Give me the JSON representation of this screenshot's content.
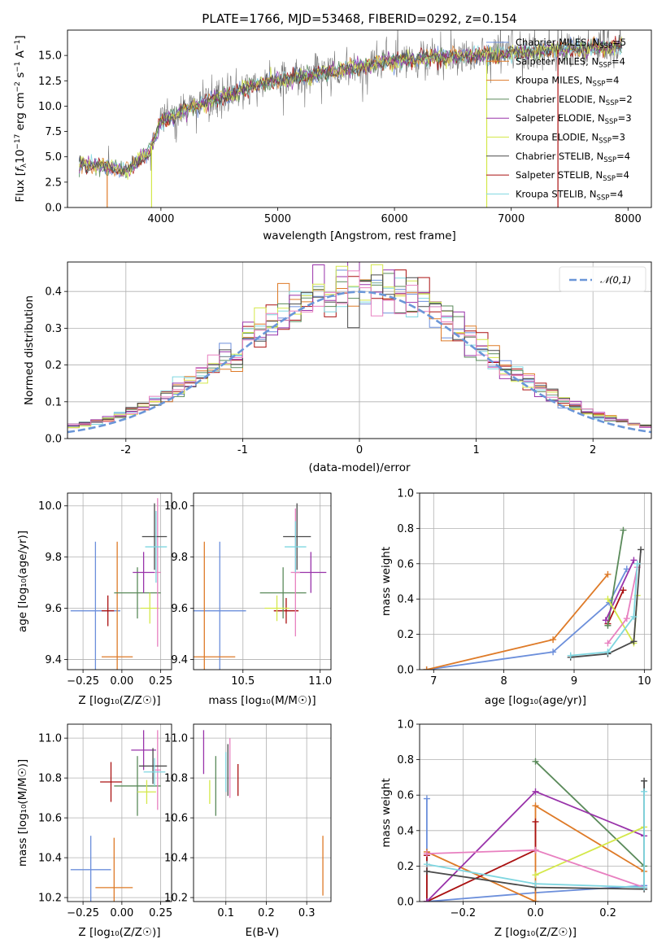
{
  "header": {
    "title": "PLATE=1766, MJD=53468, FIBERID=0292, z=0.154"
  },
  "colors": {
    "Chabrier MILES": "#6c8fdb",
    "Salpeter MILES": "#de7a27",
    "Kroupa MILES": "#de7a27",
    "Chabrier ELODIE": "#5a8a5a",
    "Salpeter ELODIE": "#9933aa",
    "Kroupa ELODIE": "#d4e84a",
    "Chabrier STELIB": "#4a4a4a",
    "Salpeter STELIB": "#aa1111",
    "Kroupa STELIB": "#7fd6e0",
    "pink": "#e880c0",
    "normal": "#6a96d8",
    "data": "#777777"
  },
  "chart_data": [
    {
      "id": "spectrum",
      "type": "line",
      "title": "PLATE=1766, MJD=53468, FIBERID=0292, z=0.154",
      "xlabel": "wavelength [Angstrom, rest frame]",
      "ylabel_parts": [
        "Flux [",
        "f",
        "λ",
        "10",
        "−17",
        " erg cm",
        "−2",
        " s",
        "−1",
        " A",
        "−1",
        "]"
      ],
      "xlim": [
        3200,
        8200
      ],
      "ylim": [
        0,
        17.5
      ],
      "xticks": [
        4000,
        5000,
        6000,
        7000,
        8000
      ],
      "yticks": [
        0.0,
        2.5,
        5.0,
        7.5,
        10.0,
        12.5,
        15.0
      ],
      "ytick_labels": [
        "0.0",
        "2.5",
        "5.0",
        "7.5",
        "10.0",
        "12.5",
        "15.0"
      ],
      "grid": false,
      "legend_position": "right",
      "legend": [
        {
          "label": "Chabrier MILES, N",
          "sub": "SSP",
          "tail": "=5",
          "color_key": "Chabrier MILES"
        },
        {
          "label": "Salpeter MILES, N",
          "sub": "SSP",
          "tail": "=4",
          "color_key": "Salpeter MILES"
        },
        {
          "label": "Kroupa MILES, N",
          "sub": "SSP",
          "tail": "=4",
          "color_key": "Kroupa MILES"
        },
        {
          "label": "Chabrier ELODIE, N",
          "sub": "SSP",
          "tail": "=2",
          "color_key": "Chabrier ELODIE"
        },
        {
          "label": "Salpeter ELODIE, N",
          "sub": "SSP",
          "tail": "=3",
          "color_key": "Salpeter ELODIE"
        },
        {
          "label": "Kroupa ELODIE, N",
          "sub": "SSP",
          "tail": "=3",
          "color_key": "Kroupa ELODIE"
        },
        {
          "label": "Chabrier STELIB, N",
          "sub": "SSP",
          "tail": "=4",
          "color_key": "Chabrier STELIB"
        },
        {
          "label": "Salpeter STELIB, N",
          "sub": "SSP",
          "tail": "=4",
          "color_key": "Salpeter STELIB"
        },
        {
          "label": "Kroupa STELIB, N",
          "sub": "SSP",
          "tail": "=4",
          "color_key": "Kroupa STELIB"
        }
      ],
      "continuum": [
        [
          3300,
          4.3
        ],
        [
          3500,
          4.1
        ],
        [
          3700,
          3.6
        ],
        [
          3900,
          5.5
        ],
        [
          4000,
          8.5
        ],
        [
          4200,
          9.6
        ],
        [
          4400,
          10.5
        ],
        [
          4600,
          11.2
        ],
        [
          4800,
          12.0
        ],
        [
          5000,
          12.6
        ],
        [
          5200,
          12.9
        ],
        [
          5500,
          13.5
        ],
        [
          5800,
          14.1
        ],
        [
          6000,
          14.5
        ],
        [
          6300,
          14.8
        ],
        [
          6600,
          15.0
        ],
        [
          7000,
          15.2
        ],
        [
          7300,
          15.5
        ],
        [
          7600,
          15.7
        ],
        [
          8000,
          15.9
        ]
      ]
    },
    {
      "id": "residuals",
      "type": "histogram",
      "xlabel": "(data-model)/error",
      "ylabel": "Normed distribution",
      "xlim": [
        -2.5,
        2.5
      ],
      "ylim": [
        0,
        0.48
      ],
      "xticks": [
        -2,
        -1,
        0,
        1,
        2
      ],
      "yticks": [
        0.0,
        0.1,
        0.2,
        0.3,
        0.4
      ],
      "ytick_labels": [
        "0.0",
        "0.1",
        "0.2",
        "0.3",
        "0.4"
      ],
      "grid": true,
      "legend_position": "upper right",
      "legend": [
        {
          "label": "𝒩(0,1)",
          "color_key": "normal",
          "style": "dashed"
        }
      ],
      "bins": 50
    },
    {
      "id": "age-vs-Z",
      "type": "scatter",
      "xlabel": "Z [log₁₀(Z/Z☉)]",
      "ylabel": "age  [log₁₀(age/yr)]",
      "xlim": [
        -0.35,
        0.32
      ],
      "ylim": [
        9.36,
        10.05
      ],
      "xticks": [
        -0.25,
        0.0,
        0.25
      ],
      "xtick_labels": [
        "−0.25",
        "0.00",
        "0.25"
      ],
      "yticks": [
        9.4,
        9.6,
        9.8,
        10.0
      ],
      "ytick_labels": [
        "9.4",
        "9.6",
        "9.8",
        "10.0"
      ],
      "grid": true,
      "points": [
        {
          "c": "Chabrier MILES",
          "x": -0.17,
          "xerr": 0.16,
          "y": 9.59,
          "yerr": 0.27
        },
        {
          "c": "Kroupa MILES",
          "x": -0.03,
          "xerr": 0.1,
          "y": 9.41,
          "yerr": 0.45
        },
        {
          "c": "Salpeter STELIB",
          "x": -0.09,
          "xerr": 0.04,
          "y": 9.59,
          "yerr": 0.06
        },
        {
          "c": "Chabrier ELODIE",
          "x": 0.1,
          "xerr": 0.15,
          "y": 9.66,
          "yerr": 0.1
        },
        {
          "c": "Salpeter ELODIE",
          "x": 0.14,
          "xerr": 0.07,
          "y": 9.74,
          "yerr": 0.08
        },
        {
          "c": "Kroupa ELODIE",
          "x": 0.18,
          "xerr": 0.06,
          "y": 9.6,
          "yerr": 0.06
        },
        {
          "c": "pink",
          "x": 0.23,
          "xerr": 0.02,
          "y": 9.74,
          "yerr": 0.29
        },
        {
          "c": "Chabrier STELIB",
          "x": 0.21,
          "xerr": 0.08,
          "y": 9.88,
          "yerr": 0.13
        },
        {
          "c": "Kroupa STELIB",
          "x": 0.22,
          "xerr": 0.07,
          "y": 9.84,
          "yerr": 0.14
        }
      ]
    },
    {
      "id": "age-vs-mass",
      "type": "scatter",
      "xlabel": "mass [log₁₀(M/M☉)]",
      "xlim": [
        10.18,
        11.07
      ],
      "ylim": [
        9.36,
        10.05
      ],
      "xticks": [
        10.5,
        11.0
      ],
      "xtick_labels": [
        "10.5",
        "11.0"
      ],
      "yticks": [
        9.4,
        9.6,
        9.8,
        10.0
      ],
      "ytick_labels": [
        "9.4",
        "9.6",
        "9.8",
        "10.0"
      ],
      "grid": true,
      "points": [
        {
          "c": "Chabrier MILES",
          "x": 10.35,
          "xerr": 0.17,
          "y": 9.59,
          "yerr": 0.27
        },
        {
          "c": "Kroupa MILES",
          "x": 10.25,
          "xerr": 0.2,
          "y": 9.41,
          "yerr": 0.45
        },
        {
          "c": "Salpeter STELIB",
          "x": 10.78,
          "xerr": 0.08,
          "y": 9.59,
          "yerr": 0.05
        },
        {
          "c": "Chabrier ELODIE",
          "x": 10.76,
          "xerr": 0.15,
          "y": 9.66,
          "yerr": 0.1
        },
        {
          "c": "Salpeter ELODIE",
          "x": 10.94,
          "xerr": 0.1,
          "y": 9.74,
          "yerr": 0.08
        },
        {
          "c": "Kroupa ELODIE",
          "x": 10.72,
          "xerr": 0.08,
          "y": 9.6,
          "yerr": 0.05
        },
        {
          "c": "pink",
          "x": 10.84,
          "xerr": 0.03,
          "y": 9.74,
          "yerr": 0.25
        },
        {
          "c": "Chabrier STELIB",
          "x": 10.85,
          "xerr": 0.09,
          "y": 9.88,
          "yerr": 0.13
        },
        {
          "c": "Kroupa STELIB",
          "x": 10.84,
          "xerr": 0.07,
          "y": 9.84,
          "yerr": 0.1
        }
      ]
    },
    {
      "id": "weight-vs-age",
      "type": "line",
      "xlabel": "age  [log₁₀(age/yr)]",
      "ylabel": "mass weight",
      "xlim": [
        6.8,
        10.1
      ],
      "ylim": [
        0,
        1.0
      ],
      "xticks": [
        7,
        8,
        9,
        10
      ],
      "yticks": [
        0.0,
        0.2,
        0.4,
        0.6,
        0.8,
        1.0
      ],
      "ytick_labels": [
        "0.0",
        "0.2",
        "0.4",
        "0.6",
        "0.8",
        "1.0"
      ],
      "grid": true,
      "series": [
        {
          "c": "Chabrier MILES",
          "points": [
            [
              6.9,
              0.0
            ],
            [
              8.7,
              0.1
            ],
            [
              9.5,
              0.38
            ],
            [
              9.75,
              0.57
            ]
          ]
        },
        {
          "c": "Kroupa MILES",
          "points": [
            [
              6.9,
              0.0
            ],
            [
              8.7,
              0.17
            ],
            [
              9.48,
              0.54
            ]
          ]
        },
        {
          "c": "Salpeter STELIB",
          "points": [
            [
              9.48,
              0.26
            ],
            [
              9.7,
              0.45
            ]
          ]
        },
        {
          "c": "Chabrier ELODIE",
          "points": [
            [
              9.48,
              0.25
            ],
            [
              9.7,
              0.79
            ]
          ]
        },
        {
          "c": "Salpeter ELODIE",
          "points": [
            [
              9.45,
              0.28
            ],
            [
              9.85,
              0.62
            ]
          ]
        },
        {
          "c": "Kroupa ELODIE",
          "points": [
            [
              9.48,
              0.4
            ],
            [
              9.85,
              0.15
            ],
            [
              9.9,
              0.42
            ]
          ]
        },
        {
          "c": "pink",
          "points": [
            [
              9.48,
              0.15
            ],
            [
              9.75,
              0.29
            ],
            [
              9.9,
              0.58
            ]
          ]
        },
        {
          "c": "Chabrier STELIB",
          "points": [
            [
              8.95,
              0.07
            ],
            [
              9.48,
              0.09
            ],
            [
              9.85,
              0.16
            ],
            [
              9.95,
              0.68
            ]
          ]
        },
        {
          "c": "Kroupa STELIB",
          "points": [
            [
              8.95,
              0.08
            ],
            [
              9.48,
              0.1
            ],
            [
              9.85,
              0.3
            ],
            [
              9.9,
              0.6
            ]
          ]
        }
      ]
    },
    {
      "id": "mass-vs-Z",
      "type": "scatter",
      "xlabel": "Z [log₁₀(Z/Z☉)]",
      "ylabel": "mass [log₁₀(M/M☉)]",
      "xlim": [
        -0.35,
        0.32
      ],
      "ylim": [
        10.18,
        11.07
      ],
      "xticks": [
        -0.25,
        0.0,
        0.25
      ],
      "xtick_labels": [
        "−0.25",
        "0.00",
        "0.25"
      ],
      "yticks": [
        10.2,
        10.4,
        10.6,
        10.8,
        11.0
      ],
      "ytick_labels": [
        "10.2",
        "10.4",
        "10.6",
        "10.8",
        "11.0"
      ],
      "grid": true,
      "points": [
        {
          "c": "Chabrier MILES",
          "x": -0.2,
          "xerr": 0.13,
          "y": 10.34,
          "yerr": 0.17
        },
        {
          "c": "Kroupa MILES",
          "x": -0.05,
          "xerr": 0.12,
          "y": 10.25,
          "yerr": 0.25
        },
        {
          "c": "Salpeter STELIB",
          "x": -0.07,
          "xerr": 0.07,
          "y": 10.78,
          "yerr": 0.1
        },
        {
          "c": "Chabrier ELODIE",
          "x": 0.1,
          "xerr": 0.15,
          "y": 10.76,
          "yerr": 0.15
        },
        {
          "c": "Salpeter ELODIE",
          "x": 0.14,
          "xerr": 0.08,
          "y": 10.94,
          "yerr": 0.1
        },
        {
          "c": "Kroupa ELODIE",
          "x": 0.16,
          "xerr": 0.06,
          "y": 10.73,
          "yerr": 0.06
        },
        {
          "c": "pink",
          "x": 0.23,
          "xerr": 0.02,
          "y": 10.84,
          "yerr": 0.2
        },
        {
          "c": "Chabrier STELIB",
          "x": 0.2,
          "xerr": 0.09,
          "y": 10.86,
          "yerr": 0.09
        },
        {
          "c": "Kroupa STELIB",
          "x": 0.21,
          "xerr": 0.07,
          "y": 10.83,
          "yerr": 0.07
        }
      ]
    },
    {
      "id": "mass-vs-ebv",
      "type": "scatter",
      "xlabel": "E(B-V)",
      "xlim": [
        0.02,
        0.36
      ],
      "ylim": [
        10.18,
        11.07
      ],
      "xticks": [
        0.1,
        0.2,
        0.3
      ],
      "xtick_labels": [
        "0.1",
        "0.2",
        "0.3"
      ],
      "yticks": [
        10.2,
        10.4,
        10.6,
        10.8,
        11.0
      ],
      "ytick_labels": [
        "10.2",
        "10.4",
        "10.6",
        "10.8",
        "11.0"
      ],
      "grid": true,
      "points": [
        {
          "c": "Salpeter ELODIE",
          "x": 0.045,
          "xerr": 0.0,
          "y": 10.93,
          "yerr": 0.11
        },
        {
          "c": "Kroupa ELODIE",
          "x": 0.06,
          "xerr": 0.0,
          "y": 10.73,
          "yerr": 0.06
        },
        {
          "c": "Chabrier ELODIE",
          "x": 0.075,
          "xerr": 0.0,
          "y": 10.76,
          "yerr": 0.15
        },
        {
          "c": "Kroupa STELIB",
          "x": 0.1,
          "xerr": 0.0,
          "y": 10.83,
          "yerr": 0.1
        },
        {
          "c": "Chabrier STELIB",
          "x": 0.105,
          "xerr": 0.0,
          "y": 10.84,
          "yerr": 0.13
        },
        {
          "c": "pink",
          "x": 0.11,
          "xerr": 0.0,
          "y": 10.85,
          "yerr": 0.15
        },
        {
          "c": "Salpeter STELIB",
          "x": 0.13,
          "xerr": 0.0,
          "y": 10.79,
          "yerr": 0.08
        },
        {
          "c": "Kroupa MILES",
          "x": 0.34,
          "xerr": 0.0,
          "y": 10.36,
          "yerr": 0.15
        }
      ]
    },
    {
      "id": "weight-vs-Z",
      "type": "line",
      "xlabel": "Z [log₁₀(Z/Z☉)]",
      "ylabel": "mass weight",
      "xlim": [
        -0.32,
        0.32
      ],
      "ylim": [
        0,
        1.0
      ],
      "xticks": [
        -0.2,
        0.0,
        0.2
      ],
      "xtick_labels": [
        "−0.2",
        "0.0",
        "0.2"
      ],
      "yticks": [
        0.0,
        0.2,
        0.4,
        0.6,
        0.8,
        1.0
      ],
      "ytick_labels": [
        "0.0",
        "0.2",
        "0.4",
        "0.6",
        "0.8",
        "1.0"
      ],
      "grid": true,
      "series": [
        {
          "c": "Chabrier MILES",
          "points": [
            [
              -0.3,
              0.58
            ],
            [
              -0.3,
              0.0
            ],
            [
              0.0,
              0.05
            ],
            [
              0.3,
              0.09
            ]
          ]
        },
        {
          "c": "Kroupa MILES",
          "points": [
            [
              -0.3,
              0.28
            ],
            [
              0.0,
              0.0
            ],
            [
              0.0,
              0.54
            ],
            [
              0.3,
              0.17
            ]
          ]
        },
        {
          "c": "Salpeter STELIB",
          "points": [
            [
              -0.3,
              0.26
            ],
            [
              -0.3,
              0.0
            ],
            [
              0.0,
              0.29
            ],
            [
              0.0,
              0.45
            ]
          ]
        },
        {
          "c": "Chabrier ELODIE",
          "points": [
            [
              0.0,
              0.79
            ],
            [
              0.3,
              0.2
            ]
          ]
        },
        {
          "c": "Salpeter ELODIE",
          "points": [
            [
              -0.3,
              0.0
            ],
            [
              0.0,
              0.62
            ],
            [
              0.3,
              0.37
            ]
          ]
        },
        {
          "c": "Kroupa ELODIE",
          "points": [
            [
              0.0,
              0.15
            ],
            [
              0.3,
              0.42
            ]
          ]
        },
        {
          "c": "pink",
          "points": [
            [
              -0.3,
              0.27
            ],
            [
              0.0,
              0.29
            ],
            [
              0.3,
              0.08
            ]
          ]
        },
        {
          "c": "Chabrier STELIB",
          "points": [
            [
              -0.3,
              0.17
            ],
            [
              0.0,
              0.08
            ],
            [
              0.3,
              0.07
            ],
            [
              0.3,
              0.68
            ]
          ]
        },
        {
          "c": "Kroupa STELIB",
          "points": [
            [
              -0.3,
              0.21
            ],
            [
              0.0,
              0.1
            ],
            [
              0.3,
              0.08
            ],
            [
              0.3,
              0.62
            ]
          ]
        }
      ]
    }
  ]
}
